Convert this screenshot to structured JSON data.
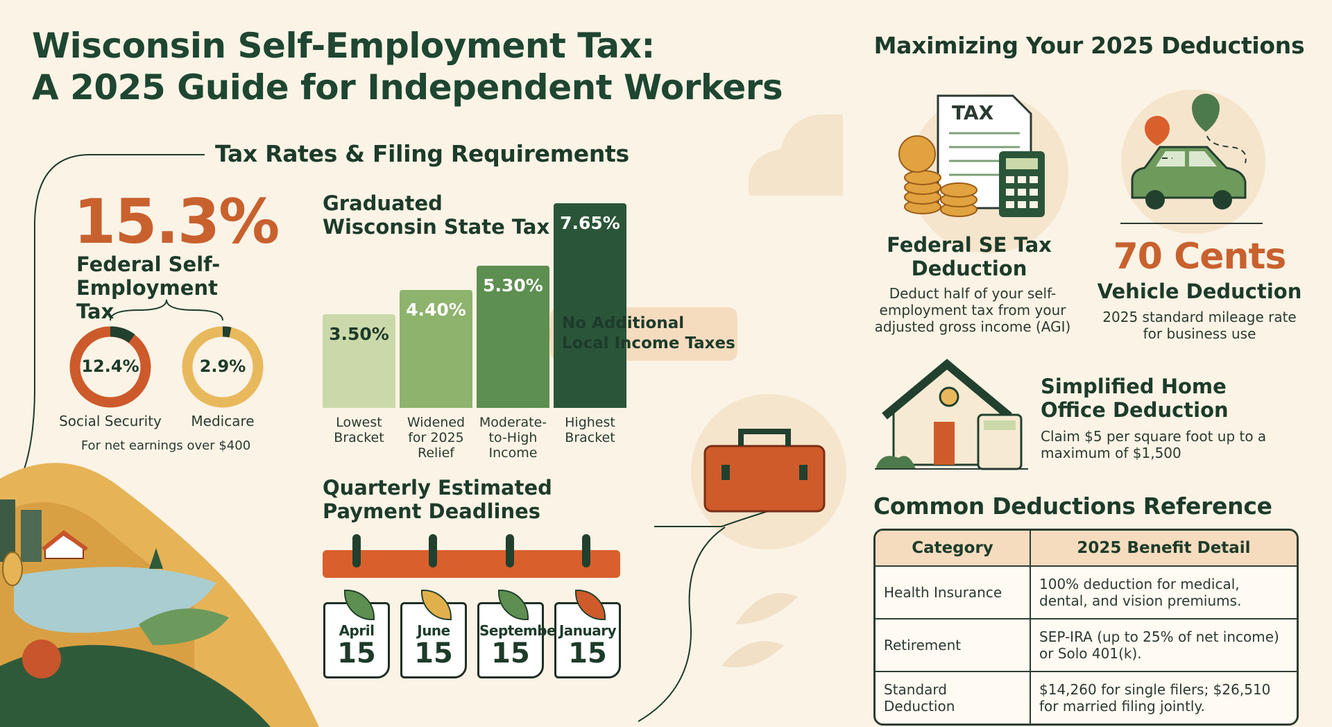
{
  "header": {
    "title": [
      "Wisconsin Self-Employment Tax:",
      "A 2025 Guide for Independent Workers"
    ]
  },
  "tax_rates": {
    "heading": "Tax Rates & Filing Requirements",
    "federal_rate": "15.3%",
    "federal_label": "Federal Self-Employment Tax",
    "components": [
      {
        "rate": "12.4%",
        "label": "Social Security"
      },
      {
        "rate": "2.9%",
        "label": "Medicare"
      }
    ],
    "note": "For net earnings over $400"
  },
  "chart_data": {
    "type": "bar",
    "title": "Graduated Wisconsin State Tax",
    "categories": [
      "Lowest Bracket",
      "Widened for 2025 Relief",
      "Moderate-to-High Income",
      "Highest Bracket"
    ],
    "values": [
      3.5,
      4.4,
      5.3,
      7.65
    ],
    "value_labels": [
      "3.50%",
      "4.40%",
      "5.30%",
      "7.65%"
    ],
    "colors": [
      "#cbd9aa",
      "#8db36c",
      "#5d8f50",
      "#2b5539"
    ],
    "callout": "No Additional Local Income Taxes"
  },
  "deadlines": {
    "heading": "Quarterly Estimated Payment Deadlines",
    "dates": [
      {
        "month": "April",
        "day": "15"
      },
      {
        "month": "June",
        "day": "15"
      },
      {
        "month": "September",
        "day": "15"
      },
      {
        "month": "January",
        "day": "15"
      }
    ]
  },
  "deductions": {
    "heading": "Maximizing Your 2025 Deductions",
    "icon_label": "TAX",
    "cards": [
      {
        "title": "Federal SE Tax Deduction",
        "description": "Deduct half of your self-employment tax from your adjusted gross income (AGI)"
      },
      {
        "highlight": "70 Cents",
        "title": "Vehicle Deduction",
        "description": "2025 standard mileage rate for business use"
      },
      {
        "title": "Simplified Home Office Deduction",
        "description": "Claim $5 per square foot up to a maximum of $1,500"
      }
    ]
  },
  "table": {
    "title": "Common Deductions Reference",
    "columns": [
      "Category",
      "2025 Benefit Detail"
    ],
    "rows": [
      [
        "Health Insurance",
        "100% deduction for medical, dental, and vision premiums."
      ],
      [
        "Retirement",
        "SEP-IRA (up to 25% of net income) or Solo 401(k)."
      ],
      [
        "Standard Deduction",
        "$14,260 for single filers; $26,510 for married filing jointly."
      ]
    ]
  }
}
